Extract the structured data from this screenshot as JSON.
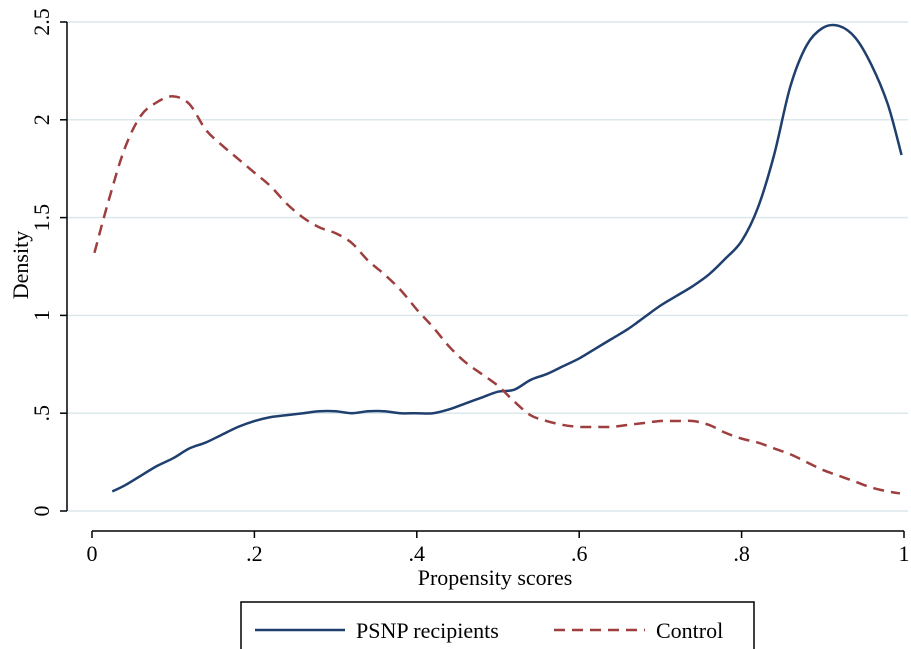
{
  "chart_data": {
    "type": "line",
    "title": "",
    "xlabel": "Propensity scores",
    "ylabel": "Density",
    "xlim": [
      0,
      1
    ],
    "ylim": [
      0,
      2.5
    ],
    "grid": true,
    "legend_position": "bottom",
    "x_ticks": [
      0,
      0.2,
      0.4,
      0.6,
      0.8,
      1
    ],
    "x_tick_labels": [
      "0",
      ".2",
      ".4",
      ".6",
      ".8",
      "1"
    ],
    "y_ticks": [
      0,
      0.5,
      1,
      1.5,
      2,
      2.5
    ],
    "y_tick_labels": [
      "0",
      ".5",
      "1",
      "1.5",
      "2",
      "2.5"
    ],
    "series": [
      {
        "name": "PSNP recipients",
        "color": "#1f3f6e",
        "style": "solid",
        "points": [
          [
            0.025,
            0.1
          ],
          [
            0.04,
            0.13
          ],
          [
            0.06,
            0.18
          ],
          [
            0.08,
            0.23
          ],
          [
            0.1,
            0.27
          ],
          [
            0.12,
            0.32
          ],
          [
            0.14,
            0.35
          ],
          [
            0.16,
            0.39
          ],
          [
            0.18,
            0.43
          ],
          [
            0.2,
            0.46
          ],
          [
            0.22,
            0.48
          ],
          [
            0.24,
            0.49
          ],
          [
            0.26,
            0.5
          ],
          [
            0.28,
            0.51
          ],
          [
            0.3,
            0.51
          ],
          [
            0.32,
            0.5
          ],
          [
            0.34,
            0.51
          ],
          [
            0.36,
            0.51
          ],
          [
            0.38,
            0.5
          ],
          [
            0.4,
            0.5
          ],
          [
            0.42,
            0.5
          ],
          [
            0.44,
            0.52
          ],
          [
            0.46,
            0.55
          ],
          [
            0.48,
            0.58
          ],
          [
            0.5,
            0.61
          ],
          [
            0.52,
            0.62
          ],
          [
            0.54,
            0.67
          ],
          [
            0.56,
            0.7
          ],
          [
            0.58,
            0.74
          ],
          [
            0.6,
            0.78
          ],
          [
            0.62,
            0.83
          ],
          [
            0.64,
            0.88
          ],
          [
            0.66,
            0.93
          ],
          [
            0.68,
            0.99
          ],
          [
            0.7,
            1.05
          ],
          [
            0.72,
            1.1
          ],
          [
            0.74,
            1.15
          ],
          [
            0.76,
            1.21
          ],
          [
            0.78,
            1.29
          ],
          [
            0.8,
            1.38
          ],
          [
            0.82,
            1.55
          ],
          [
            0.84,
            1.82
          ],
          [
            0.86,
            2.17
          ],
          [
            0.88,
            2.38
          ],
          [
            0.9,
            2.47
          ],
          [
            0.92,
            2.48
          ],
          [
            0.94,
            2.42
          ],
          [
            0.96,
            2.28
          ],
          [
            0.98,
            2.08
          ],
          [
            0.997,
            1.82
          ]
        ]
      },
      {
        "name": "Control",
        "color": "#9e3e3e",
        "style": "dashed",
        "points": [
          [
            0.003,
            1.32
          ],
          [
            0.02,
            1.58
          ],
          [
            0.04,
            1.85
          ],
          [
            0.06,
            2.02
          ],
          [
            0.08,
            2.09
          ],
          [
            0.1,
            2.12
          ],
          [
            0.12,
            2.08
          ],
          [
            0.14,
            1.95
          ],
          [
            0.16,
            1.87
          ],
          [
            0.18,
            1.8
          ],
          [
            0.2,
            1.73
          ],
          [
            0.22,
            1.66
          ],
          [
            0.24,
            1.57
          ],
          [
            0.26,
            1.5
          ],
          [
            0.28,
            1.45
          ],
          [
            0.3,
            1.42
          ],
          [
            0.32,
            1.37
          ],
          [
            0.34,
            1.28
          ],
          [
            0.36,
            1.21
          ],
          [
            0.38,
            1.13
          ],
          [
            0.4,
            1.03
          ],
          [
            0.42,
            0.94
          ],
          [
            0.44,
            0.84
          ],
          [
            0.46,
            0.76
          ],
          [
            0.48,
            0.7
          ],
          [
            0.5,
            0.64
          ],
          [
            0.52,
            0.56
          ],
          [
            0.54,
            0.49
          ],
          [
            0.56,
            0.46
          ],
          [
            0.58,
            0.44
          ],
          [
            0.6,
            0.43
          ],
          [
            0.62,
            0.43
          ],
          [
            0.64,
            0.43
          ],
          [
            0.66,
            0.44
          ],
          [
            0.68,
            0.45
          ],
          [
            0.7,
            0.46
          ],
          [
            0.72,
            0.46
          ],
          [
            0.74,
            0.46
          ],
          [
            0.76,
            0.44
          ],
          [
            0.78,
            0.4
          ],
          [
            0.8,
            0.37
          ],
          [
            0.82,
            0.35
          ],
          [
            0.84,
            0.32
          ],
          [
            0.86,
            0.29
          ],
          [
            0.88,
            0.25
          ],
          [
            0.9,
            0.21
          ],
          [
            0.92,
            0.18
          ],
          [
            0.94,
            0.15
          ],
          [
            0.96,
            0.12
          ],
          [
            0.98,
            0.1
          ],
          [
            0.995,
            0.09
          ]
        ]
      }
    ]
  }
}
